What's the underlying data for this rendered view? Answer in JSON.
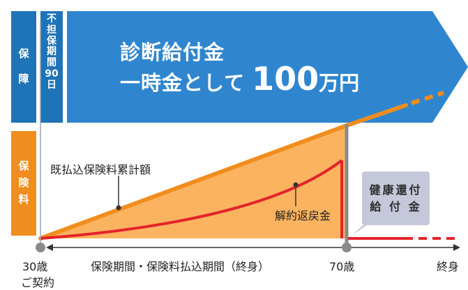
{
  "side_labels": {
    "coverage": [
      "保",
      "障"
    ],
    "no_coverage_period": [
      "不",
      "担",
      "保",
      "期",
      "間",
      "90",
      "日"
    ],
    "premium": [
      "保",
      "険",
      "料"
    ]
  },
  "benefit": {
    "title": "診断給付金",
    "subtitle": "一時金として",
    "amount": "100",
    "unit": "万円"
  },
  "labels": {
    "cumulative_premium": "既払込保険料累計額",
    "surrender_refund": "解約返戻金",
    "health_refund_line1": "健康還付",
    "health_refund_line2": "給 付 金"
  },
  "axis": {
    "start_age": "30歳",
    "contract": "ご契約",
    "period": "保険期間・保険料払込期間（終身）",
    "age_70": "70歳",
    "lifetime": "終身"
  },
  "colors": {
    "blue": "#1f73b7",
    "arrow_blue": "#2f86cf",
    "orange": "#f08d1e",
    "light_orange": "#fbb35f",
    "red": "#e4232b",
    "gray": "#8a8a8a",
    "refund_box": "#c5c7da"
  }
}
